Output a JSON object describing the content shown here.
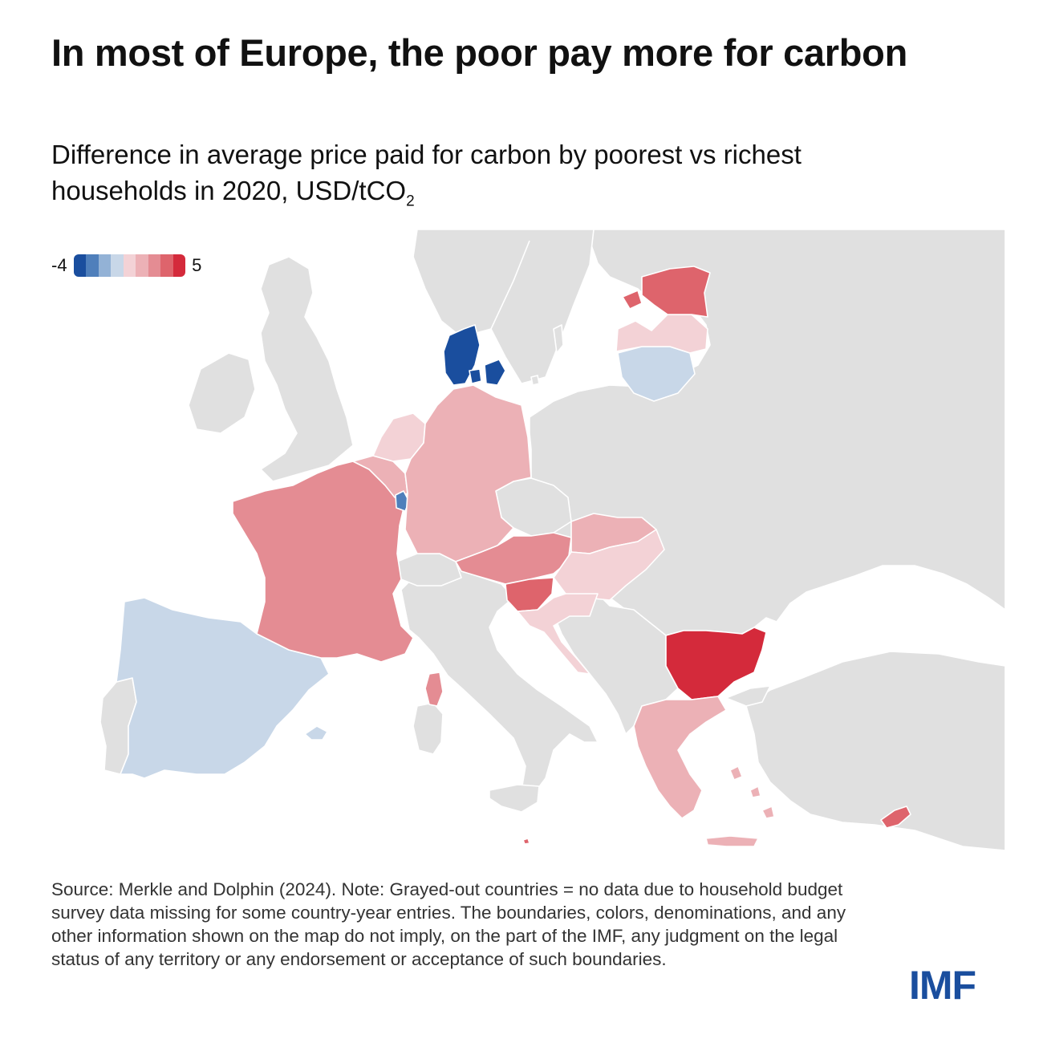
{
  "title": "In most of Europe, the poor pay more for carbon",
  "subtitle": {
    "line1": "Difference in average price paid for carbon by poorest vs richest",
    "line2": "households in 2020, USD/tCO",
    "sub": "2"
  },
  "legend": {
    "min_label": "-4",
    "max_label": "5",
    "colors": [
      "#1a4e9e",
      "#4f7fbb",
      "#93b2d6",
      "#c8d7e8",
      "#f3d2d6",
      "#ecb1b6",
      "#e48c93",
      "#de646c",
      "#d42a3b"
    ]
  },
  "map": {
    "no_data_color": "#e0e0e0",
    "sea_color": "#ffffff",
    "countries_with_data": [
      {
        "name": "Denmark",
        "color": "#1a4e9e"
      },
      {
        "name": "Luxembourg",
        "color": "#4f7fbb"
      },
      {
        "name": "Spain",
        "color": "#c8d7e8"
      },
      {
        "name": "Lithuania",
        "color": "#c8d7e8"
      },
      {
        "name": "Latvia",
        "color": "#f3d2d6"
      },
      {
        "name": "Hungary",
        "color": "#f3d2d6"
      },
      {
        "name": "Netherlands",
        "color": "#f3d2d6"
      },
      {
        "name": "Croatia",
        "color": "#f3d2d6"
      },
      {
        "name": "Germany",
        "color": "#ecb1b6"
      },
      {
        "name": "Belgium",
        "color": "#ecb1b6"
      },
      {
        "name": "Slovakia",
        "color": "#ecb1b6"
      },
      {
        "name": "Greece",
        "color": "#ecb1b6"
      },
      {
        "name": "France",
        "color": "#e48c93"
      },
      {
        "name": "Austria",
        "color": "#e48c93"
      },
      {
        "name": "Estonia",
        "color": "#de646c"
      },
      {
        "name": "Slovenia",
        "color": "#de646c"
      },
      {
        "name": "Cyprus",
        "color": "#de646c"
      },
      {
        "name": "Bulgaria",
        "color": "#d42a3b"
      }
    ]
  },
  "source": "Source: Merkle and Dolphin (2024). Note: Grayed-out countries = no data due to household budget survey data missing for some country-year entries. The boundaries, colors, denominations, and any other information shown on the map do not imply, on the part of the IMF, any judgment on the legal status of any territory or any endorsement or acceptance of such boundaries.",
  "logo": "IMF"
}
